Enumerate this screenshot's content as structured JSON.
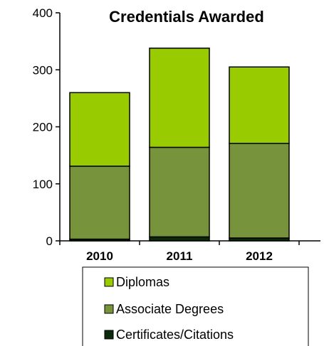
{
  "chart_data": {
    "type": "bar",
    "stacked": true,
    "title": "Credentials Awarded",
    "categories": [
      "2010",
      "2011",
      "2012"
    ],
    "series": [
      {
        "name": "Certificates/Citations",
        "values": [
          3,
          7,
          5
        ],
        "color": "#0a2a0a"
      },
      {
        "name": "Associate Degrees",
        "values": [
          128,
          157,
          166
        ],
        "color": "#77933c"
      },
      {
        "name": "Diplomas",
        "values": [
          129,
          174,
          134
        ],
        "color": "#99cc00"
      }
    ],
    "ylim": [
      0,
      400
    ],
    "yticks": [
      0,
      100,
      200,
      300,
      400
    ],
    "legend_order": [
      "Diplomas",
      "Associate Degrees",
      "Certificates/Citations"
    ],
    "grid": false,
    "legend_position": "bottom"
  }
}
